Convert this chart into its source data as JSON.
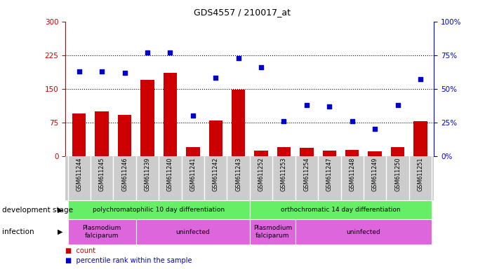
{
  "title": "GDS4557 / 210017_at",
  "samples": [
    "GSM611244",
    "GSM611245",
    "GSM611246",
    "GSM611239",
    "GSM611240",
    "GSM611241",
    "GSM611242",
    "GSM611243",
    "GSM611252",
    "GSM611253",
    "GSM611254",
    "GSM611247",
    "GSM611248",
    "GSM611249",
    "GSM611250",
    "GSM611251"
  ],
  "counts": [
    95,
    100,
    92,
    170,
    185,
    20,
    80,
    148,
    12,
    20,
    18,
    12,
    13,
    10,
    20,
    78
  ],
  "percentiles": [
    63,
    63,
    62,
    77,
    77,
    30,
    58,
    73,
    66,
    26,
    38,
    37,
    26,
    20,
    38,
    57
  ],
  "bar_color": "#cc0000",
  "dot_color": "#0000cc",
  "left_ylim": [
    0,
    300
  ],
  "left_yticks": [
    0,
    75,
    150,
    225,
    300
  ],
  "right_ylim": [
    0,
    100
  ],
  "right_yticks": [
    0,
    25,
    50,
    75,
    100
  ],
  "right_yticklabels": [
    "0%",
    "25%",
    "50%",
    "75%",
    "100%"
  ],
  "hlines": [
    75,
    150,
    225
  ],
  "dev_stage_groups": [
    {
      "label": "polychromatophilic 10 day differentiation",
      "start": 0,
      "end": 7,
      "color": "#66ee66"
    },
    {
      "label": "orthochromatic 14 day differentiation",
      "start": 8,
      "end": 15,
      "color": "#66ee66"
    }
  ],
  "infection_groups": [
    {
      "label": "Plasmodium\nfalciparum",
      "start": 0,
      "end": 2,
      "color": "#dd66dd"
    },
    {
      "label": "uninfected",
      "start": 3,
      "end": 7,
      "color": "#dd66dd"
    },
    {
      "label": "Plasmodium\nfalciparum",
      "start": 8,
      "end": 9,
      "color": "#dd66dd"
    },
    {
      "label": "uninfected",
      "start": 10,
      "end": 15,
      "color": "#dd66dd"
    }
  ],
  "legend_count_label": "count",
  "legend_pct_label": "percentile rank within the sample",
  "dev_stage_label": "development stage",
  "infection_label": "infection",
  "axis_color_left": "#cc0000",
  "axis_color_right": "#0000cc",
  "xticklabel_bg": "#cccccc",
  "separator_color": "#ffffff"
}
